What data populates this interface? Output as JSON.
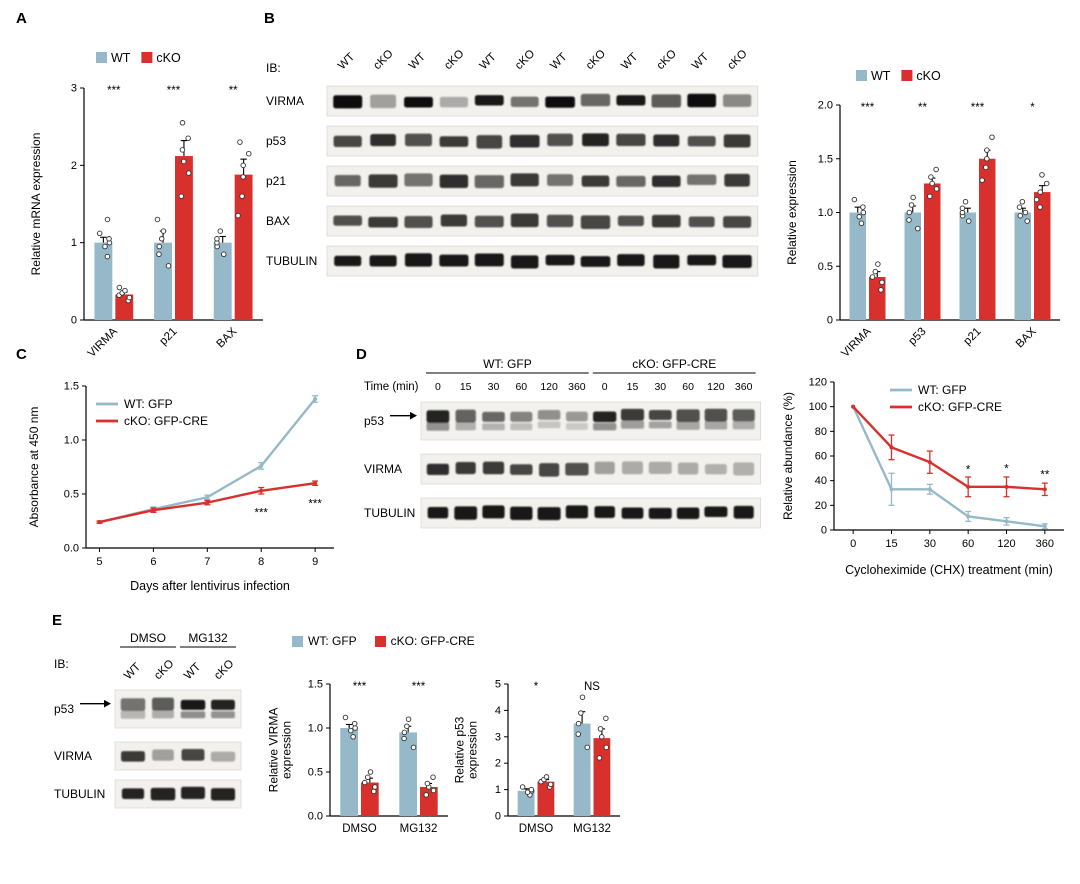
{
  "colors": {
    "wt": "#96b9ca",
    "cko": "#d8302d",
    "axis": "#000000",
    "band": "#0e0e0e",
    "strip_bg": "#f3f1ee"
  },
  "panels": {
    "a": {
      "letter": "A"
    },
    "b": {
      "letter": "B",
      "blot": {
        "ib_label": "IB:",
        "lane_labels": [
          "WT",
          "cKO",
          "WT",
          "cKO",
          "WT",
          "cKO",
          "WT",
          "cKO",
          "WT",
          "cKO",
          "WT",
          "cKO"
        ],
        "rows": [
          {
            "label": "VIRMA",
            "bands": [
              1,
              0.35,
              1,
              0.3,
              0.95,
              0.55,
              1,
              0.6,
              0.95,
              0.65,
              1,
              0.45
            ]
          },
          {
            "label": "p53",
            "bands": [
              0.75,
              0.85,
              0.7,
              0.8,
              0.75,
              0.85,
              0.7,
              0.9,
              0.75,
              0.85,
              0.7,
              0.8
            ]
          },
          {
            "label": "p21",
            "bands": [
              0.6,
              0.8,
              0.55,
              0.85,
              0.6,
              0.8,
              0.55,
              0.8,
              0.6,
              0.85,
              0.55,
              0.8
            ]
          },
          {
            "label": "BAX",
            "bands": [
              0.7,
              0.8,
              0.7,
              0.8,
              0.7,
              0.8,
              0.7,
              0.75,
              0.7,
              0.8,
              0.7,
              0.75
            ]
          },
          {
            "label": "TUBULIN",
            "bands": [
              0.95,
              0.95,
              0.95,
              0.95,
              0.95,
              0.95,
              0.95,
              0.95,
              0.95,
              0.95,
              0.95,
              0.95
            ]
          }
        ]
      }
    },
    "c": {
      "letter": "C"
    },
    "d": {
      "letter": "D",
      "blot": {
        "headers": [
          {
            "label": "WT: GFP",
            "from": 0,
            "to": 5
          },
          {
            "label": "cKO: GFP-CRE",
            "from": 6,
            "to": 11
          }
        ],
        "time": {
          "label": "Time (min)",
          "values": [
            "0",
            "15",
            "30",
            "60",
            "120",
            "360",
            "0",
            "15",
            "30",
            "60",
            "120",
            "360"
          ]
        },
        "rows": [
          {
            "label": "p53",
            "arrow": true,
            "doublet": true,
            "bands": [
              0.9,
              0.62,
              0.6,
              0.48,
              0.42,
              0.38,
              0.9,
              0.8,
              0.75,
              0.7,
              0.7,
              0.65
            ]
          },
          {
            "label": "VIRMA",
            "bands": [
              0.85,
              0.8,
              0.8,
              0.75,
              0.75,
              0.7,
              0.35,
              0.3,
              0.3,
              0.3,
              0.28,
              0.28
            ]
          },
          {
            "label": "TUBULIN",
            "bands": [
              0.95,
              0.95,
              0.95,
              0.95,
              0.95,
              0.95,
              0.95,
              0.95,
              0.95,
              0.95,
              0.95,
              0.95
            ]
          }
        ]
      }
    },
    "e": {
      "letter": "E",
      "legend": [
        {
          "label": "WT: GFP",
          "color": "wt"
        },
        {
          "label": "cKO: GFP-CRE",
          "color": "cko"
        }
      ],
      "blot": {
        "ib_label": "IB:",
        "headers": [
          {
            "label": "DMSO",
            "from": 0,
            "to": 1
          },
          {
            "label": "MG132",
            "from": 2,
            "to": 3
          }
        ],
        "lane_labels": [
          "WT",
          "cKO",
          "WT",
          "cKO"
        ],
        "rows": [
          {
            "label": "p53",
            "arrow": true,
            "doublet": true,
            "bands": [
              0.55,
              0.65,
              0.95,
              0.9
            ]
          },
          {
            "label": "VIRMA",
            "bands": [
              0.8,
              0.35,
              0.75,
              0.3
            ]
          },
          {
            "label": "TUBULIN",
            "bands": [
              0.9,
              0.9,
              0.9,
              0.9
            ]
          }
        ]
      }
    }
  },
  "chart_data": [
    {
      "panel": "A",
      "type": "bar",
      "title": "",
      "ylabel": "Relative mRNA expression",
      "ylim": [
        0,
        3
      ],
      "yticks": [
        {
          "v": 0,
          "t": "0"
        },
        {
          "v": 1,
          "t": "1"
        },
        {
          "v": 2,
          "t": "2"
        },
        {
          "v": 3,
          "t": "3"
        }
      ],
      "categories": [
        "VIRMA",
        "p21",
        "BAX"
      ],
      "legend": [
        {
          "label": "WT",
          "color": "wt"
        },
        {
          "label": "cKO",
          "color": "cko"
        }
      ],
      "series": [
        {
          "name": "WT",
          "color": "wt",
          "values": [
            1.0,
            1.0,
            1.0
          ],
          "errors": [
            0.07,
            0.15,
            0.08
          ],
          "points": [
            [
              0.82,
              0.95,
              1.0,
              1.05,
              1.12,
              1.3
            ],
            [
              0.7,
              0.85,
              0.95,
              1.05,
              1.15,
              1.3
            ],
            [
              0.85,
              0.95,
              1.0,
              1.05,
              1.15
            ]
          ]
        },
        {
          "name": "cKO",
          "color": "cko",
          "values": [
            0.33,
            2.12,
            1.88
          ],
          "errors": [
            0.03,
            0.2,
            0.2
          ],
          "points": [
            [
              0.25,
              0.29,
              0.32,
              0.35,
              0.38,
              0.42
            ],
            [
              1.6,
              1.9,
              2.05,
              2.2,
              2.35,
              2.55
            ],
            [
              1.35,
              1.6,
              1.85,
              2.0,
              2.15,
              2.3
            ]
          ]
        }
      ],
      "sig": [
        "***",
        "***",
        "**"
      ]
    },
    {
      "panel": "B",
      "type": "bar",
      "title": "",
      "ylabel": "Relative expression",
      "ylim": [
        0,
        2
      ],
      "yticks": [
        {
          "v": 0,
          "t": "0"
        },
        {
          "v": 0.5,
          "t": "0.5"
        },
        {
          "v": 1,
          "t": "1.0"
        },
        {
          "v": 1.5,
          "t": "1.5"
        },
        {
          "v": 2,
          "t": "2.0"
        }
      ],
      "categories": [
        "VIRMA",
        "p53",
        "p21",
        "BAX"
      ],
      "legend": [
        {
          "label": "WT",
          "color": "wt"
        },
        {
          "label": "cKO",
          "color": "cko"
        }
      ],
      "series": [
        {
          "name": "WT",
          "color": "wt",
          "values": [
            1.0,
            1.0,
            1.0,
            1.0
          ],
          "errors": [
            0.05,
            0.06,
            0.04,
            0.04
          ],
          "points": [
            [
              0.9,
              0.96,
              1.0,
              1.05,
              1.12
            ],
            [
              0.85,
              0.93,
              1.0,
              1.07,
              1.14
            ],
            [
              0.92,
              0.97,
              1.0,
              1.04,
              1.1
            ],
            [
              0.92,
              0.97,
              1.0,
              1.05,
              1.1
            ]
          ]
        },
        {
          "name": "cKO",
          "color": "cko",
          "values": [
            0.4,
            1.27,
            1.5,
            1.19
          ],
          "errors": [
            0.05,
            0.05,
            0.08,
            0.06
          ],
          "points": [
            [
              0.28,
              0.35,
              0.4,
              0.45,
              0.52
            ],
            [
              1.15,
              1.22,
              1.27,
              1.33,
              1.4
            ],
            [
              1.3,
              1.42,
              1.5,
              1.58,
              1.7
            ],
            [
              1.05,
              1.12,
              1.19,
              1.27,
              1.35
            ]
          ]
        }
      ],
      "sig": [
        "***",
        "**",
        "***",
        "*"
      ]
    },
    {
      "panel": "C",
      "type": "line",
      "x_numeric": true,
      "x": [
        5,
        6,
        7,
        8,
        9
      ],
      "xdomain": [
        4.75,
        9.35
      ],
      "xticks": [
        {
          "v": 5,
          "t": "5"
        },
        {
          "v": 6,
          "t": "6"
        },
        {
          "v": 7,
          "t": "7"
        },
        {
          "v": 8,
          "t": "8"
        },
        {
          "v": 9,
          "t": "9"
        }
      ],
      "xlabel": "Days after lentivirus infection",
      "ylabel": "Absorbance at 450 nm",
      "ylim": [
        0,
        1.5
      ],
      "yticks": [
        {
          "v": 0,
          "t": "0.0"
        },
        {
          "v": 0.5,
          "t": "0.5"
        },
        {
          "v": 1,
          "t": "1.0"
        },
        {
          "v": 1.5,
          "t": "1.5"
        }
      ],
      "legend": [
        {
          "label": "WT: GFP",
          "color": "wt"
        },
        {
          "label": "cKO: GFP-CRE",
          "color": "cko"
        }
      ],
      "series": [
        {
          "name": "WT: GFP",
          "color": "wt",
          "values": [
            0.24,
            0.36,
            0.47,
            0.76,
            1.38
          ],
          "errors": [
            0.01,
            0.02,
            0.02,
            0.03,
            0.03
          ]
        },
        {
          "name": "cKO: GFP-CRE",
          "color": "cko",
          "values": [
            0.24,
            0.35,
            0.42,
            0.53,
            0.6
          ],
          "errors": [
            0.01,
            0.02,
            0.02,
            0.03,
            0.02
          ]
        }
      ],
      "sig": [
        {
          "x": 8,
          "v": 0.33,
          "t": "***"
        },
        {
          "x": 9,
          "v": 0.41,
          "t": "***"
        }
      ]
    },
    {
      "panel": "D",
      "type": "line",
      "x_numeric": false,
      "xticks": [
        {
          "t": "0"
        },
        {
          "t": "15"
        },
        {
          "t": "30"
        },
        {
          "t": "60"
        },
        {
          "t": "120"
        },
        {
          "t": "360"
        }
      ],
      "xlabel": "Cycloheximide (CHX) treatment (min)",
      "ylabel": "Relative abundance (%)",
      "ylim": [
        0,
        120
      ],
      "yticks": [
        {
          "v": 0,
          "t": "0"
        },
        {
          "v": 20,
          "t": "20"
        },
        {
          "v": 40,
          "t": "40"
        },
        {
          "v": 60,
          "t": "60"
        },
        {
          "v": 80,
          "t": "80"
        },
        {
          "v": 100,
          "t": "100"
        },
        {
          "v": 120,
          "t": "120"
        }
      ],
      "legend": [
        {
          "label": "WT: GFP",
          "color": "wt"
        },
        {
          "label": "cKO: GFP-CRE",
          "color": "cko"
        }
      ],
      "series": [
        {
          "name": "WT: GFP",
          "color": "wt",
          "values": [
            100,
            33,
            33,
            11,
            7,
            3
          ],
          "errors": [
            0,
            13,
            4,
            4,
            3,
            2
          ]
        },
        {
          "name": "cKO: GFP-CRE",
          "color": "cko",
          "values": [
            100,
            67,
            55,
            35,
            35,
            33
          ],
          "errors": [
            0,
            10,
            9,
            8,
            8,
            5
          ]
        }
      ],
      "sig": [
        {
          "x": 3,
          "v": 49,
          "t": "*"
        },
        {
          "x": 4,
          "v": 50,
          "t": "*"
        },
        {
          "x": 5,
          "v": 45,
          "t": "**"
        }
      ]
    },
    {
      "panel": "E1",
      "type": "bar",
      "ylabel": "Relative VIRMA\nexpression",
      "ylim": [
        0,
        1.5
      ],
      "yticks": [
        {
          "v": 0,
          "t": "0.0"
        },
        {
          "v": 0.5,
          "t": "0.5"
        },
        {
          "v": 1,
          "t": "1.0"
        },
        {
          "v": 1.5,
          "t": "1.5"
        }
      ],
      "categories": [
        "DMSO",
        "MG132"
      ],
      "series": [
        {
          "name": "WT: GFP",
          "color": "wt",
          "values": [
            1.0,
            0.95
          ],
          "errors": [
            0.04,
            0.07
          ],
          "points": [
            [
              0.9,
              0.97,
              1.0,
              1.05,
              1.12
            ],
            [
              0.78,
              0.88,
              0.95,
              1.02,
              1.1
            ]
          ]
        },
        {
          "name": "cKO: GFP-CRE",
          "color": "cko",
          "values": [
            0.38,
            0.33
          ],
          "errors": [
            0.05,
            0.04
          ],
          "points": [
            [
              0.28,
              0.33,
              0.38,
              0.44,
              0.5
            ],
            [
              0.24,
              0.29,
              0.33,
              0.37,
              0.44
            ]
          ]
        }
      ],
      "sig": [
        "***",
        "***"
      ]
    },
    {
      "panel": "E2",
      "type": "bar",
      "ylabel": "Relative p53\nexpression",
      "ylim": [
        0,
        5
      ],
      "yticks": [
        {
          "v": 0,
          "t": "0"
        },
        {
          "v": 1,
          "t": "1"
        },
        {
          "v": 2,
          "t": "2"
        },
        {
          "v": 3,
          "t": "3"
        },
        {
          "v": 4,
          "t": "4"
        },
        {
          "v": 5,
          "t": "5"
        }
      ],
      "categories": [
        "DMSO",
        "MG132"
      ],
      "series": [
        {
          "name": "WT: GFP",
          "color": "wt",
          "values": [
            0.95,
            3.5
          ],
          "errors": [
            0.08,
            0.45
          ],
          "points": [
            [
              0.8,
              0.9,
              0.95,
              1.0,
              1.1
            ],
            [
              2.6,
              3.1,
              3.5,
              3.9,
              4.5
            ]
          ]
        },
        {
          "name": "cKO: GFP-CRE",
          "color": "cko",
          "values": [
            1.3,
            2.95
          ],
          "errors": [
            0.08,
            0.35
          ],
          "points": [
            [
              1.1,
              1.2,
              1.3,
              1.38,
              1.48
            ],
            [
              2.2,
              2.6,
              3.0,
              3.3,
              3.7
            ]
          ]
        }
      ],
      "sig": [
        "*",
        "NS"
      ]
    }
  ]
}
